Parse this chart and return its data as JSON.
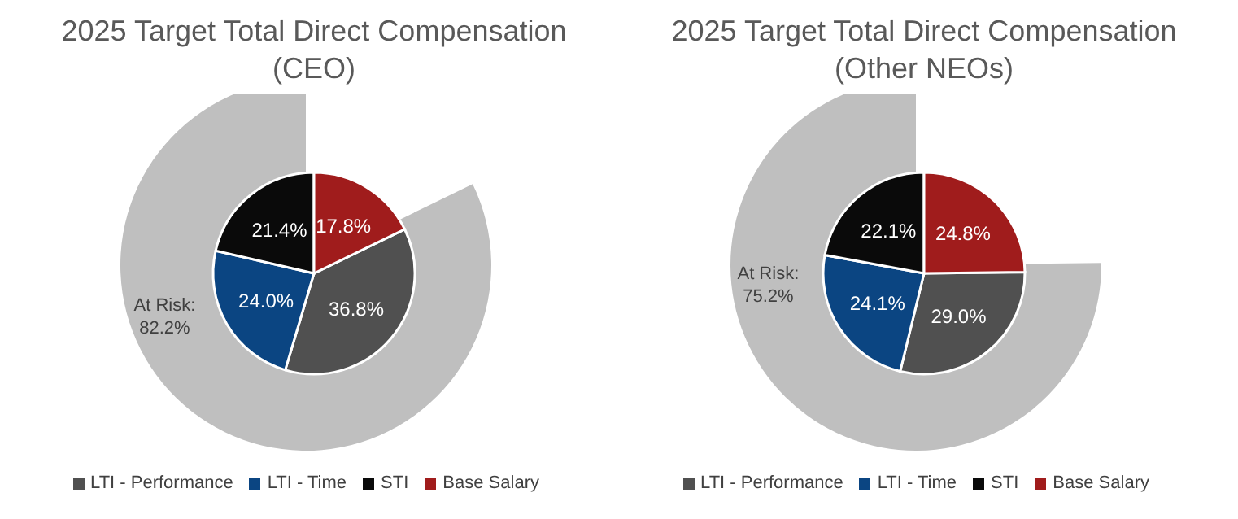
{
  "chart_data": [
    {
      "type": "pie",
      "title": "2025 Target Total Direct Compensation\n(CEO)",
      "legend": "bottom",
      "categories": [
        "LTI - Performance",
        "LTI - Time",
        "STI",
        "Base Salary"
      ],
      "values": [
        36.8,
        24.0,
        21.4,
        17.8
      ],
      "colors": [
        "#505050",
        "#0b4582",
        "#0a0a0a",
        "#a01c1c"
      ],
      "value_labels": [
        "36.8%",
        "24.0%",
        "21.4%",
        "17.8%"
      ],
      "annotations": [
        "At Risk:\n82.2%"
      ]
    },
    {
      "type": "pie",
      "title": "2025 Target Total Direct Compensation\n(Other NEOs)",
      "legend": "bottom",
      "categories": [
        "LTI - Performance",
        "LTI - Time",
        "STI",
        "Base Salary"
      ],
      "values": [
        29.0,
        24.1,
        22.1,
        24.8
      ],
      "colors": [
        "#505050",
        "#0b4582",
        "#0a0a0a",
        "#a01c1c"
      ],
      "value_labels": [
        "29.0%",
        "24.1%",
        "22.1%",
        "24.8%"
      ],
      "annotations": [
        "At Risk:\n75.2%"
      ]
    }
  ]
}
